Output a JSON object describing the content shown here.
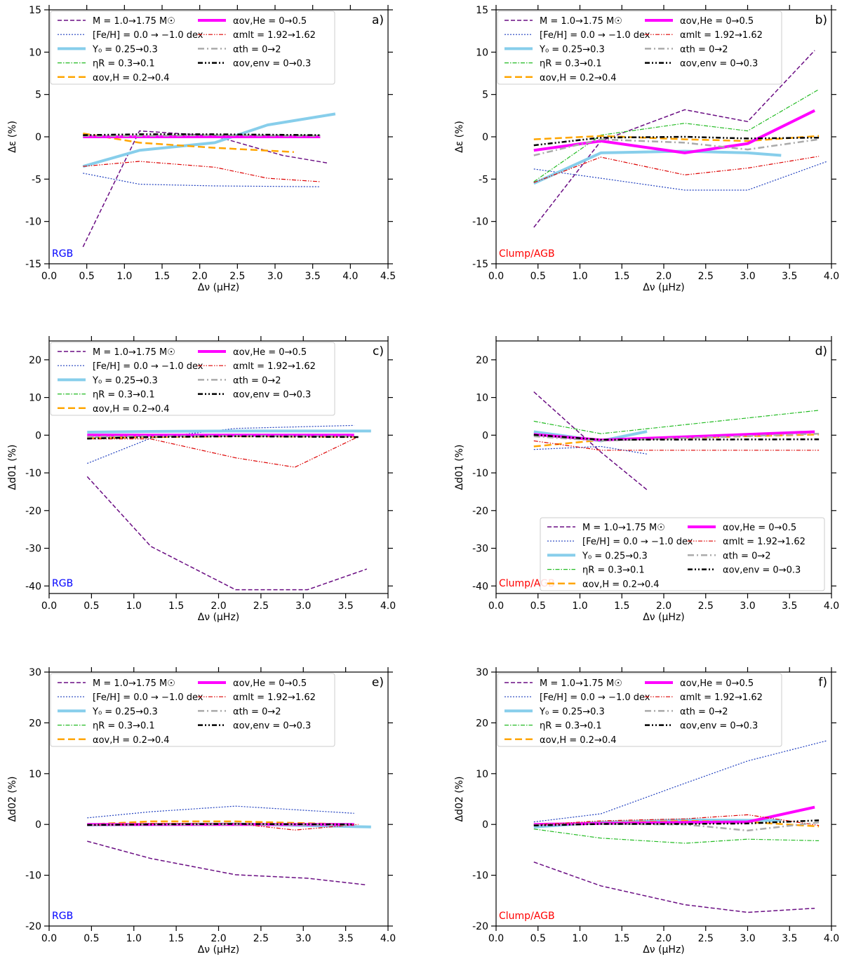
{
  "figure": {
    "legend": [
      {
        "key": "mass",
        "label": "M = 1.0→1.75 M☉",
        "color": "#6a0d83",
        "width": 1.5,
        "dash": "6,3"
      },
      {
        "key": "feh",
        "label": "[Fe/H] = 0.0 → −1.0 dex",
        "color": "#1f3fbf",
        "width": 1.2,
        "dash": "2,2"
      },
      {
        "key": "y0",
        "label": "Y₀ = 0.25→0.3",
        "color": "#87ceeb",
        "width": 4,
        "dash": ""
      },
      {
        "key": "eta",
        "label": "ηR = 0.3→0.1",
        "color": "#22bb22",
        "width": 1.2,
        "dash": "6,2,1.5,2"
      },
      {
        "key": "ovh",
        "label": "αov,H = 0.2→0.4",
        "color": "#ffa500",
        "width": 2.5,
        "dash": "10,5"
      },
      {
        "key": "ovhe",
        "label": "αov,He = 0→0.5",
        "color": "#ff00ff",
        "width": 4,
        "dash": ""
      },
      {
        "key": "mlt",
        "label": "αmlt = 1.92→1.62",
        "color": "#dd0000",
        "width": 1.2,
        "dash": "6,2,1.5,2,1.5,2"
      },
      {
        "key": "th",
        "label": "αth = 0→2",
        "color": "#aaaaaa",
        "width": 2.5,
        "dash": "9,4,2,4"
      },
      {
        "key": "env",
        "label": "αov,env = 0→0.3",
        "color": "#000000",
        "width": 2.5,
        "dash": "7,3,2,3,2,3"
      }
    ]
  },
  "chart_data": [
    {
      "panel": "a)",
      "tag": "RGB",
      "tag_color": "#0000ff",
      "type": "line",
      "xlabel": "Δν (μHz)",
      "ylabel": "Δε (%)",
      "xlim": [
        0,
        4.5
      ],
      "ylim": [
        -15,
        15
      ],
      "xticks": [
        "0.0",
        "0.5",
        "1.0",
        "1.5",
        "2.0",
        "2.5",
        "3.0",
        "3.5",
        "4.0",
        "4.5"
      ],
      "yticks": [
        "-15",
        "-10",
        "-5",
        "0",
        "5",
        "10",
        "15"
      ],
      "legend_position": "upper-left",
      "series": [
        {
          "key": "mass",
          "x": [
            0.45,
            1.2,
            2.2,
            3.1,
            3.7
          ],
          "y": [
            -13,
            0.7,
            0.1,
            -2.2,
            -3.1
          ]
        },
        {
          "key": "feh",
          "x": [
            0.45,
            1.2,
            2.2,
            3.6
          ],
          "y": [
            -4.3,
            -5.6,
            -5.8,
            -5.9
          ]
        },
        {
          "key": "y0",
          "x": [
            0.45,
            1.2,
            2.2,
            2.9,
            3.8
          ],
          "y": [
            -3.5,
            -1.6,
            -0.7,
            1.4,
            2.7
          ]
        },
        {
          "key": "eta",
          "x": [
            0.45,
            1.2,
            2.2,
            3.6
          ],
          "y": [
            0.1,
            0.1,
            0.2,
            0.2
          ]
        },
        {
          "key": "ovh",
          "x": [
            0.45,
            1.2,
            2.2,
            3.25
          ],
          "y": [
            0.4,
            -0.7,
            -1.3,
            -1.8
          ]
        },
        {
          "key": "ovhe",
          "x": [
            0.45,
            1.2,
            2.2,
            3.6
          ],
          "y": [
            0,
            0,
            0,
            0
          ]
        },
        {
          "key": "mlt",
          "x": [
            0.45,
            1.2,
            2.2,
            2.9,
            3.6
          ],
          "y": [
            -3.5,
            -2.9,
            -3.6,
            -4.9,
            -5.3
          ]
        },
        {
          "key": "th",
          "x": [
            0.45,
            1.2,
            2.2,
            3.6
          ],
          "y": [
            0.1,
            0.1,
            0.2,
            0.1
          ]
        },
        {
          "key": "env",
          "x": [
            0.45,
            1.2,
            2.2,
            3.6
          ],
          "y": [
            0.2,
            0.3,
            0.3,
            0.2
          ]
        }
      ]
    },
    {
      "panel": "b)",
      "tag": "Clump/AGB",
      "tag_color": "#ff0000",
      "type": "line",
      "xlabel": "Δν (μHz)",
      "ylabel": "Δε (%)",
      "xlim": [
        0,
        4.0
      ],
      "ylim": [
        -15,
        15
      ],
      "xticks": [
        "0.0",
        "0.5",
        "1.0",
        "1.5",
        "2.0",
        "2.5",
        "3.0",
        "3.5",
        "4.0"
      ],
      "yticks": [
        "-15",
        "-10",
        "-5",
        "0",
        "5",
        "10",
        "15"
      ],
      "legend_position": "upper-left",
      "series": [
        {
          "key": "mass",
          "x": [
            0.45,
            1.25,
            2.25,
            3.0,
            3.8
          ],
          "y": [
            -10.7,
            -0.5,
            3.2,
            1.8,
            10.2
          ]
        },
        {
          "key": "feh",
          "x": [
            0.45,
            1.25,
            2.25,
            3.0,
            3.95
          ],
          "y": [
            -3.8,
            -4.9,
            -6.3,
            -6.3,
            -2.9
          ]
        },
        {
          "key": "y0",
          "x": [
            0.45,
            1.25,
            2.25,
            3.0,
            3.4
          ],
          "y": [
            -5.5,
            -1.9,
            -1.7,
            -1.9,
            -2.2
          ]
        },
        {
          "key": "eta",
          "x": [
            0.45,
            1.25,
            2.25,
            3.0,
            3.85
          ],
          "y": [
            -5.3,
            0.2,
            1.6,
            0.7,
            5.6
          ]
        },
        {
          "key": "ovh",
          "x": [
            0.45,
            1.25,
            2.25,
            3.0,
            3.85
          ],
          "y": [
            -0.3,
            0.1,
            -0.3,
            -0.5,
            0.1
          ]
        },
        {
          "key": "ovhe",
          "x": [
            0.45,
            1.25,
            2.25,
            3.0,
            3.8
          ],
          "y": [
            -1.6,
            -0.5,
            -1.9,
            -0.8,
            3.1
          ]
        },
        {
          "key": "mlt",
          "x": [
            0.45,
            1.25,
            2.25,
            3.0,
            3.85
          ],
          "y": [
            -5.4,
            -2.4,
            -4.5,
            -3.7,
            -2.3
          ]
        },
        {
          "key": "th",
          "x": [
            0.45,
            1.25,
            2.25,
            3.0,
            3.85
          ],
          "y": [
            -2.2,
            -0.3,
            -0.7,
            -1.5,
            -0.3
          ]
        },
        {
          "key": "env",
          "x": [
            0.45,
            1.25,
            2.25,
            3.0,
            3.85
          ],
          "y": [
            -1.0,
            -0.1,
            0.0,
            -0.2,
            -0.1
          ]
        }
      ]
    },
    {
      "panel": "c)",
      "tag": "RGB",
      "tag_color": "#0000ff",
      "type": "line",
      "xlabel": "Δν (μHz)",
      "ylabel": "Δd01 (%)",
      "xlim": [
        0,
        4.0
      ],
      "ylim": [
        -42,
        25
      ],
      "xticks": [
        "0.0",
        "0.5",
        "1.0",
        "1.5",
        "2.0",
        "2.5",
        "3.0",
        "3.5",
        "4.0"
      ],
      "yticks": [
        "-40",
        "-30",
        "-20",
        "-10",
        "0",
        "10",
        "20"
      ],
      "legend_position": "upper-left",
      "series": [
        {
          "key": "mass",
          "x": [
            0.45,
            1.2,
            2.2,
            3.05,
            3.75
          ],
          "y": [
            -11,
            -29.5,
            -41,
            -41,
            -35.5
          ]
        },
        {
          "key": "feh",
          "x": [
            0.45,
            1.2,
            2.2,
            3.6
          ],
          "y": [
            -7.5,
            -0.8,
            1.8,
            2.6
          ]
        },
        {
          "key": "y0",
          "x": [
            0.45,
            1.2,
            2.2,
            3.8
          ],
          "y": [
            0.8,
            1.0,
            1.1,
            1.1
          ]
        },
        {
          "key": "eta",
          "x": [
            0.45,
            1.2,
            2.2,
            3.6
          ],
          "y": [
            -0.6,
            -0.3,
            -0.2,
            -0.3
          ]
        },
        {
          "key": "ovh",
          "x": [
            0.45,
            1.2,
            2.2,
            3.6
          ],
          "y": [
            -0.8,
            -0.5,
            -0.3,
            -0.4
          ]
        },
        {
          "key": "ovhe",
          "x": [
            0.45,
            1.2,
            2.2,
            3.6
          ],
          "y": [
            0,
            0,
            0,
            0
          ]
        },
        {
          "key": "mlt",
          "x": [
            0.45,
            1.2,
            2.2,
            2.9,
            3.65
          ],
          "y": [
            -1.0,
            -1.0,
            -6.0,
            -8.5,
            -0.4
          ]
        },
        {
          "key": "th",
          "x": [
            0.45,
            1.2,
            2.2,
            3.6
          ],
          "y": [
            -0.4,
            -0.3,
            -0.2,
            -0.3
          ]
        },
        {
          "key": "env",
          "x": [
            0.45,
            1.2,
            2.2,
            3.65
          ],
          "y": [
            -0.9,
            -0.5,
            -0.3,
            -0.5
          ]
        }
      ]
    },
    {
      "panel": "d)",
      "tag": "Clump/AGB",
      "tag_color": "#ff0000",
      "type": "line",
      "xlabel": "Δν (μHz)",
      "ylabel": "Δd01 (%)",
      "xlim": [
        0,
        4.0
      ],
      "ylim": [
        -42,
        25
      ],
      "xticks": [
        "0.0",
        "0.5",
        "1.0",
        "1.5",
        "2.0",
        "2.5",
        "3.0",
        "3.5",
        "4.0"
      ],
      "yticks": [
        "-40",
        "-30",
        "-20",
        "-10",
        "0",
        "10",
        "20"
      ],
      "legend_position": "lower-right",
      "series": [
        {
          "key": "mass",
          "x": [
            0.45,
            1.25,
            1.8
          ],
          "y": [
            11.5,
            -4.5,
            -14.5
          ]
        },
        {
          "key": "feh",
          "x": [
            0.45,
            1.25,
            1.8
          ],
          "y": [
            -3.8,
            -3.0,
            -5.0
          ]
        },
        {
          "key": "y0",
          "x": [
            0.45,
            1.25,
            1.8
          ],
          "y": [
            0.9,
            -1.5,
            1.0
          ]
        },
        {
          "key": "eta",
          "x": [
            0.45,
            1.25,
            3.85
          ],
          "y": [
            3.7,
            0.4,
            6.6
          ]
        },
        {
          "key": "ovh",
          "x": [
            0.45,
            1.25,
            3.85
          ],
          "y": [
            -3.0,
            -1.3,
            0.2
          ]
        },
        {
          "key": "ovhe",
          "x": [
            0.45,
            1.25,
            3.8
          ],
          "y": [
            0.2,
            -1.3,
            0.9
          ]
        },
        {
          "key": "mlt",
          "x": [
            0.45,
            1.25,
            3.85
          ],
          "y": [
            -1.5,
            -4.0,
            -4.0
          ]
        },
        {
          "key": "th",
          "x": [
            0.45,
            1.25,
            3.85
          ],
          "y": [
            -0.3,
            -1.5,
            0.4
          ]
        },
        {
          "key": "env",
          "x": [
            0.45,
            1.25,
            3.85
          ],
          "y": [
            0.1,
            -1.2,
            -1.1
          ]
        }
      ]
    },
    {
      "panel": "e)",
      "tag": "RGB",
      "tag_color": "#0000ff",
      "type": "line",
      "xlabel": "Δν (μHz)",
      "ylabel": "Δd02 (%)",
      "xlim": [
        0,
        4.0
      ],
      "ylim": [
        -20,
        30
      ],
      "xticks": [
        "0.0",
        "0.5",
        "1.0",
        "1.5",
        "2.0",
        "2.5",
        "3.0",
        "3.5",
        "4.0"
      ],
      "yticks": [
        "-20",
        "-10",
        "0",
        "10",
        "20",
        "30"
      ],
      "legend_position": "upper-left",
      "series": [
        {
          "key": "mass",
          "x": [
            0.45,
            1.2,
            2.2,
            3.05,
            3.75
          ],
          "y": [
            -3.3,
            -6.7,
            -9.9,
            -10.6,
            -11.9
          ]
        },
        {
          "key": "feh",
          "x": [
            0.45,
            1.2,
            2.2,
            3.6
          ],
          "y": [
            1.3,
            2.5,
            3.6,
            2.2
          ]
        },
        {
          "key": "y0",
          "x": [
            0.45,
            1.2,
            2.2,
            3.8
          ],
          "y": [
            -0.1,
            0.0,
            0.1,
            -0.5
          ]
        },
        {
          "key": "eta",
          "x": [
            0.45,
            1.2,
            2.2,
            3.6
          ],
          "y": [
            0.0,
            0.1,
            0.1,
            0.0
          ]
        },
        {
          "key": "ovh",
          "x": [
            0.45,
            1.2,
            2.2,
            3.6
          ],
          "y": [
            0.0,
            0.6,
            0.6,
            0.0
          ]
        },
        {
          "key": "ovhe",
          "x": [
            0.45,
            1.2,
            2.2,
            3.6
          ],
          "y": [
            0,
            0,
            0,
            0
          ]
        },
        {
          "key": "mlt",
          "x": [
            0.45,
            1.2,
            2.2,
            2.9,
            3.65
          ],
          "y": [
            -0.2,
            0.2,
            0.2,
            -1.1,
            0.0
          ]
        },
        {
          "key": "th",
          "x": [
            0.45,
            1.2,
            2.2,
            3.6
          ],
          "y": [
            -0.1,
            0.0,
            0.0,
            -0.1
          ]
        },
        {
          "key": "env",
          "x": [
            0.45,
            1.2,
            2.2,
            3.6
          ],
          "y": [
            -0.1,
            0.0,
            0.1,
            0.0
          ]
        }
      ]
    },
    {
      "panel": "f)",
      "tag": "Clump/AGB",
      "tag_color": "#ff0000",
      "type": "line",
      "xlabel": "Δν (μHz)",
      "ylabel": "Δd02 (%)",
      "xlim": [
        0,
        4.0
      ],
      "ylim": [
        -20,
        30
      ],
      "xticks": [
        "0.0",
        "0.5",
        "1.0",
        "1.5",
        "2.0",
        "2.5",
        "3.0",
        "3.5",
        "4.0"
      ],
      "yticks": [
        "-20",
        "-10",
        "0",
        "10",
        "20",
        "30"
      ],
      "legend_position": "upper-left",
      "series": [
        {
          "key": "mass",
          "x": [
            0.45,
            1.25,
            2.25,
            3.0,
            3.8
          ],
          "y": [
            -7.4,
            -12.1,
            -15.8,
            -17.3,
            -16.5
          ]
        },
        {
          "key": "feh",
          "x": [
            0.45,
            1.25,
            2.25,
            3.0,
            3.95
          ],
          "y": [
            0.5,
            2.1,
            8.1,
            12.5,
            16.5
          ]
        },
        {
          "key": "y0",
          "x": [
            0.45,
            1.25,
            2.25,
            3.0,
            3.4
          ],
          "y": [
            -0.5,
            0.4,
            0.9,
            0.8,
            0.8
          ]
        },
        {
          "key": "eta",
          "x": [
            0.45,
            1.25,
            2.25,
            3.0,
            3.85
          ],
          "y": [
            -0.9,
            -2.7,
            -3.7,
            -2.9,
            -3.2
          ]
        },
        {
          "key": "ovh",
          "x": [
            0.45,
            1.25,
            2.25,
            3.0,
            3.85
          ],
          "y": [
            -0.1,
            0.3,
            0.7,
            0.5,
            -0.4
          ]
        },
        {
          "key": "ovhe",
          "x": [
            0.45,
            1.25,
            2.25,
            3.0,
            3.8
          ],
          "y": [
            0.0,
            0.2,
            0.4,
            0.5,
            3.4
          ]
        },
        {
          "key": "mlt",
          "x": [
            0.45,
            1.25,
            2.25,
            3.0,
            3.85
          ],
          "y": [
            -0.1,
            0.7,
            1.1,
            1.9,
            -0.2
          ]
        },
        {
          "key": "th",
          "x": [
            0.45,
            1.25,
            2.25,
            3.0,
            3.85
          ],
          "y": [
            -0.1,
            0.1,
            0.0,
            -1.2,
            0.4
          ]
        },
        {
          "key": "env",
          "x": [
            0.45,
            1.25,
            2.25,
            3.0,
            3.85
          ],
          "y": [
            -0.2,
            0.1,
            0.1,
            0.2,
            0.8
          ]
        }
      ]
    }
  ]
}
